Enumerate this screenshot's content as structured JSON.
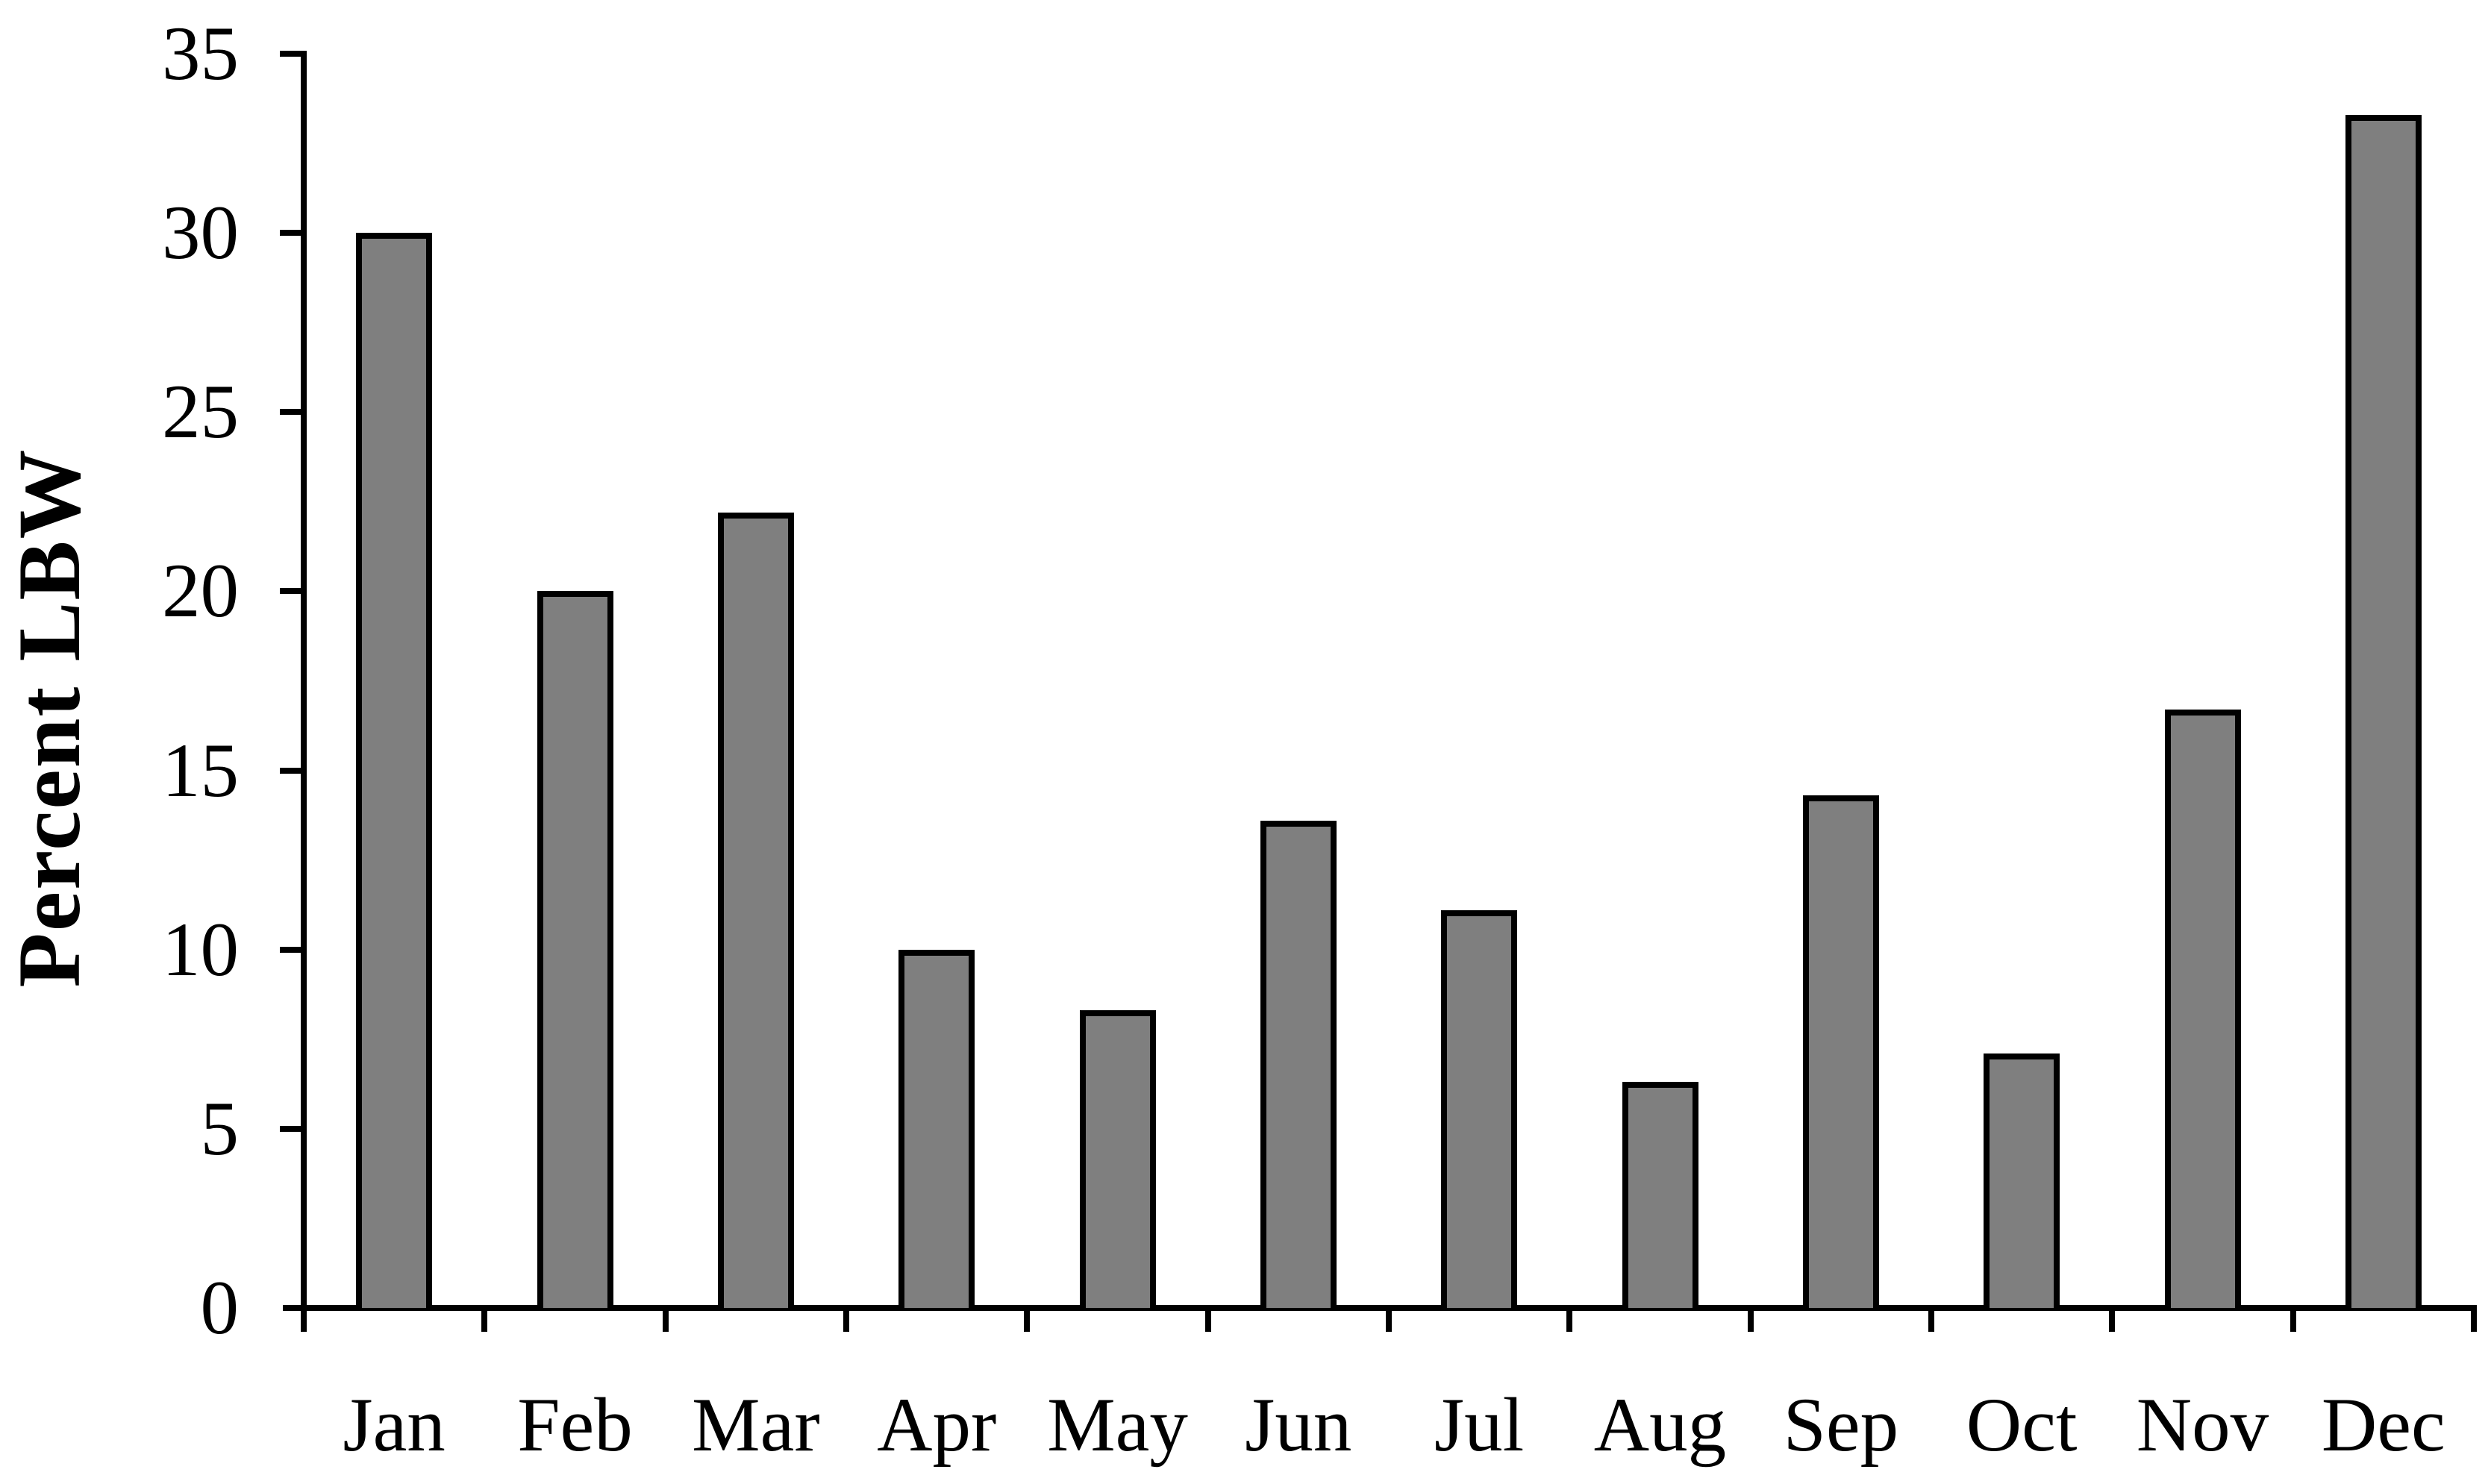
{
  "figure": {
    "background": "#ffffff"
  },
  "chart_data": {
    "type": "bar",
    "title": "",
    "xlabel": "",
    "ylabel": "Percent LBW",
    "categories": [
      "Jan",
      "Feb",
      "Mar",
      "Apr",
      "May",
      "Jun",
      "Jul",
      "Aug",
      "Sep",
      "Oct",
      "Nov",
      "Dec"
    ],
    "values": [
      30,
      20,
      22.2,
      10,
      8.3,
      13.6,
      11.1,
      6.3,
      14.3,
      7.1,
      16.7,
      33.3
    ],
    "ylim": [
      0,
      35
    ],
    "yticks": [
      0,
      5,
      10,
      15,
      20,
      25,
      30,
      35
    ],
    "grid": false,
    "legend": "none",
    "bar_fill": "#7f7f7f",
    "bar_border": "#000000",
    "axis_color": "#000000",
    "text_color": "#000000"
  }
}
